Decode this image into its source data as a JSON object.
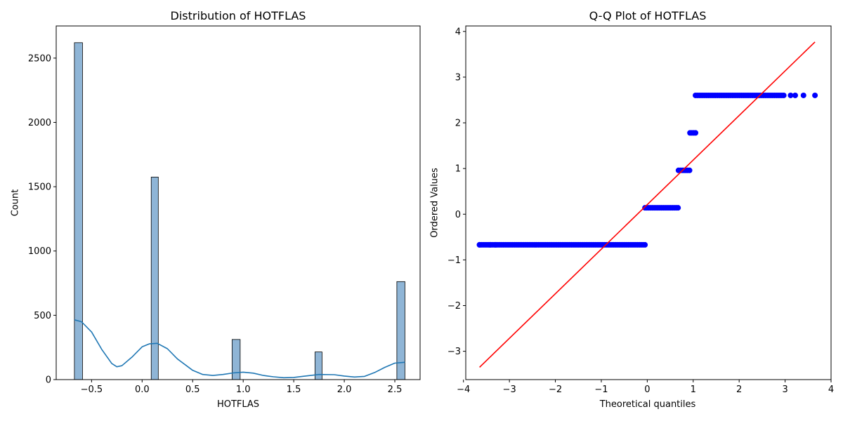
{
  "chart_data": [
    {
      "type": "bar",
      "title": "Distribution of HOTFLAS",
      "xlabel": "HOTFLAS",
      "ylabel": "Count",
      "xlim": [
        -0.85,
        2.75
      ],
      "ylim": [
        0,
        2750
      ],
      "x_ticks": [
        -0.5,
        0.0,
        0.5,
        1.0,
        1.5,
        2.0,
        2.5
      ],
      "x_tick_labels": [
        "−0.5",
        "0.0",
        "0.5",
        "1.0",
        "1.5",
        "2.0",
        "2.5"
      ],
      "y_ticks": [
        0,
        500,
        1000,
        1500,
        2000,
        2500
      ],
      "y_tick_labels": [
        "0",
        "500",
        "1000",
        "1500",
        "2000",
        "2500"
      ],
      "bars": [
        {
          "x0": -0.67,
          "x1": -0.59,
          "value": 2620
        },
        {
          "x0": 0.09,
          "x1": 0.16,
          "value": 1575
        },
        {
          "x0": 0.89,
          "x1": 0.97,
          "value": 312
        },
        {
          "x0": 1.71,
          "x1": 1.78,
          "value": 215
        },
        {
          "x0": 2.52,
          "x1": 2.6,
          "value": 762
        }
      ],
      "kde": {
        "x": [
          -0.67,
          -0.6,
          -0.5,
          -0.4,
          -0.3,
          -0.25,
          -0.2,
          -0.1,
          0.0,
          0.07,
          0.15,
          0.25,
          0.35,
          0.5,
          0.6,
          0.7,
          0.8,
          0.9,
          1.0,
          1.1,
          1.2,
          1.3,
          1.4,
          1.5,
          1.6,
          1.75,
          1.9,
          2.0,
          2.1,
          2.2,
          2.3,
          2.4,
          2.5,
          2.6
        ],
        "y": [
          465,
          450,
          370,
          235,
          125,
          100,
          108,
          175,
          255,
          278,
          282,
          240,
          160,
          72,
          40,
          32,
          40,
          52,
          58,
          50,
          32,
          22,
          15,
          17,
          26,
          40,
          38,
          28,
          20,
          25,
          55,
          95,
          128,
          135
        ]
      },
      "colors": {
        "bar": "#8fb5d6",
        "bar_edge": "#000000",
        "kde": "#1f77b4"
      }
    },
    {
      "type": "scatter",
      "title": "Q-Q Plot of HOTFLAS",
      "xlabel": "Theoretical quantiles",
      "ylabel": "Ordered Values",
      "xlim": [
        -3.95,
        4.0
      ],
      "ylim": [
        -3.62,
        4.12
      ],
      "x_ticks": [
        -4,
        -3,
        -2,
        -1,
        0,
        1,
        2,
        3,
        4
      ],
      "x_tick_labels": [
        "−4",
        "−3",
        "−2",
        "−1",
        "0",
        "1",
        "2",
        "3",
        "4"
      ],
      "y_ticks": [
        -3,
        -2,
        -1,
        0,
        1,
        2,
        3,
        4
      ],
      "y_tick_labels": [
        "−3",
        "−2",
        "−1",
        "0",
        "1",
        "2",
        "3",
        "4"
      ],
      "point_groups": [
        {
          "y": -0.67,
          "x_from": -3.65,
          "x_to": -0.02,
          "step": 0.04,
          "isolated_x": [
            -3.65,
            -3.42,
            -3.3
          ]
        },
        {
          "y": 0.14,
          "x_from": -0.05,
          "x_to": 0.7,
          "step": 0.04,
          "isolated_x": []
        },
        {
          "y": 0.96,
          "x_from": 0.68,
          "x_to": 0.95,
          "step": 0.04,
          "isolated_x": []
        },
        {
          "y": 1.78,
          "x_from": 0.93,
          "x_to": 1.08,
          "step": 0.04,
          "isolated_x": []
        },
        {
          "y": 2.6,
          "x_from": 1.05,
          "x_to": 3.0,
          "step": 0.04,
          "isolated_x": [
            3.12,
            3.22,
            3.4,
            3.65
          ]
        }
      ],
      "fit_line": {
        "x": [
          -3.65,
          3.65
        ],
        "y": [
          -3.35,
          3.77
        ]
      },
      "colors": {
        "points": "#0000ff",
        "line": "#ff0000"
      }
    }
  ]
}
